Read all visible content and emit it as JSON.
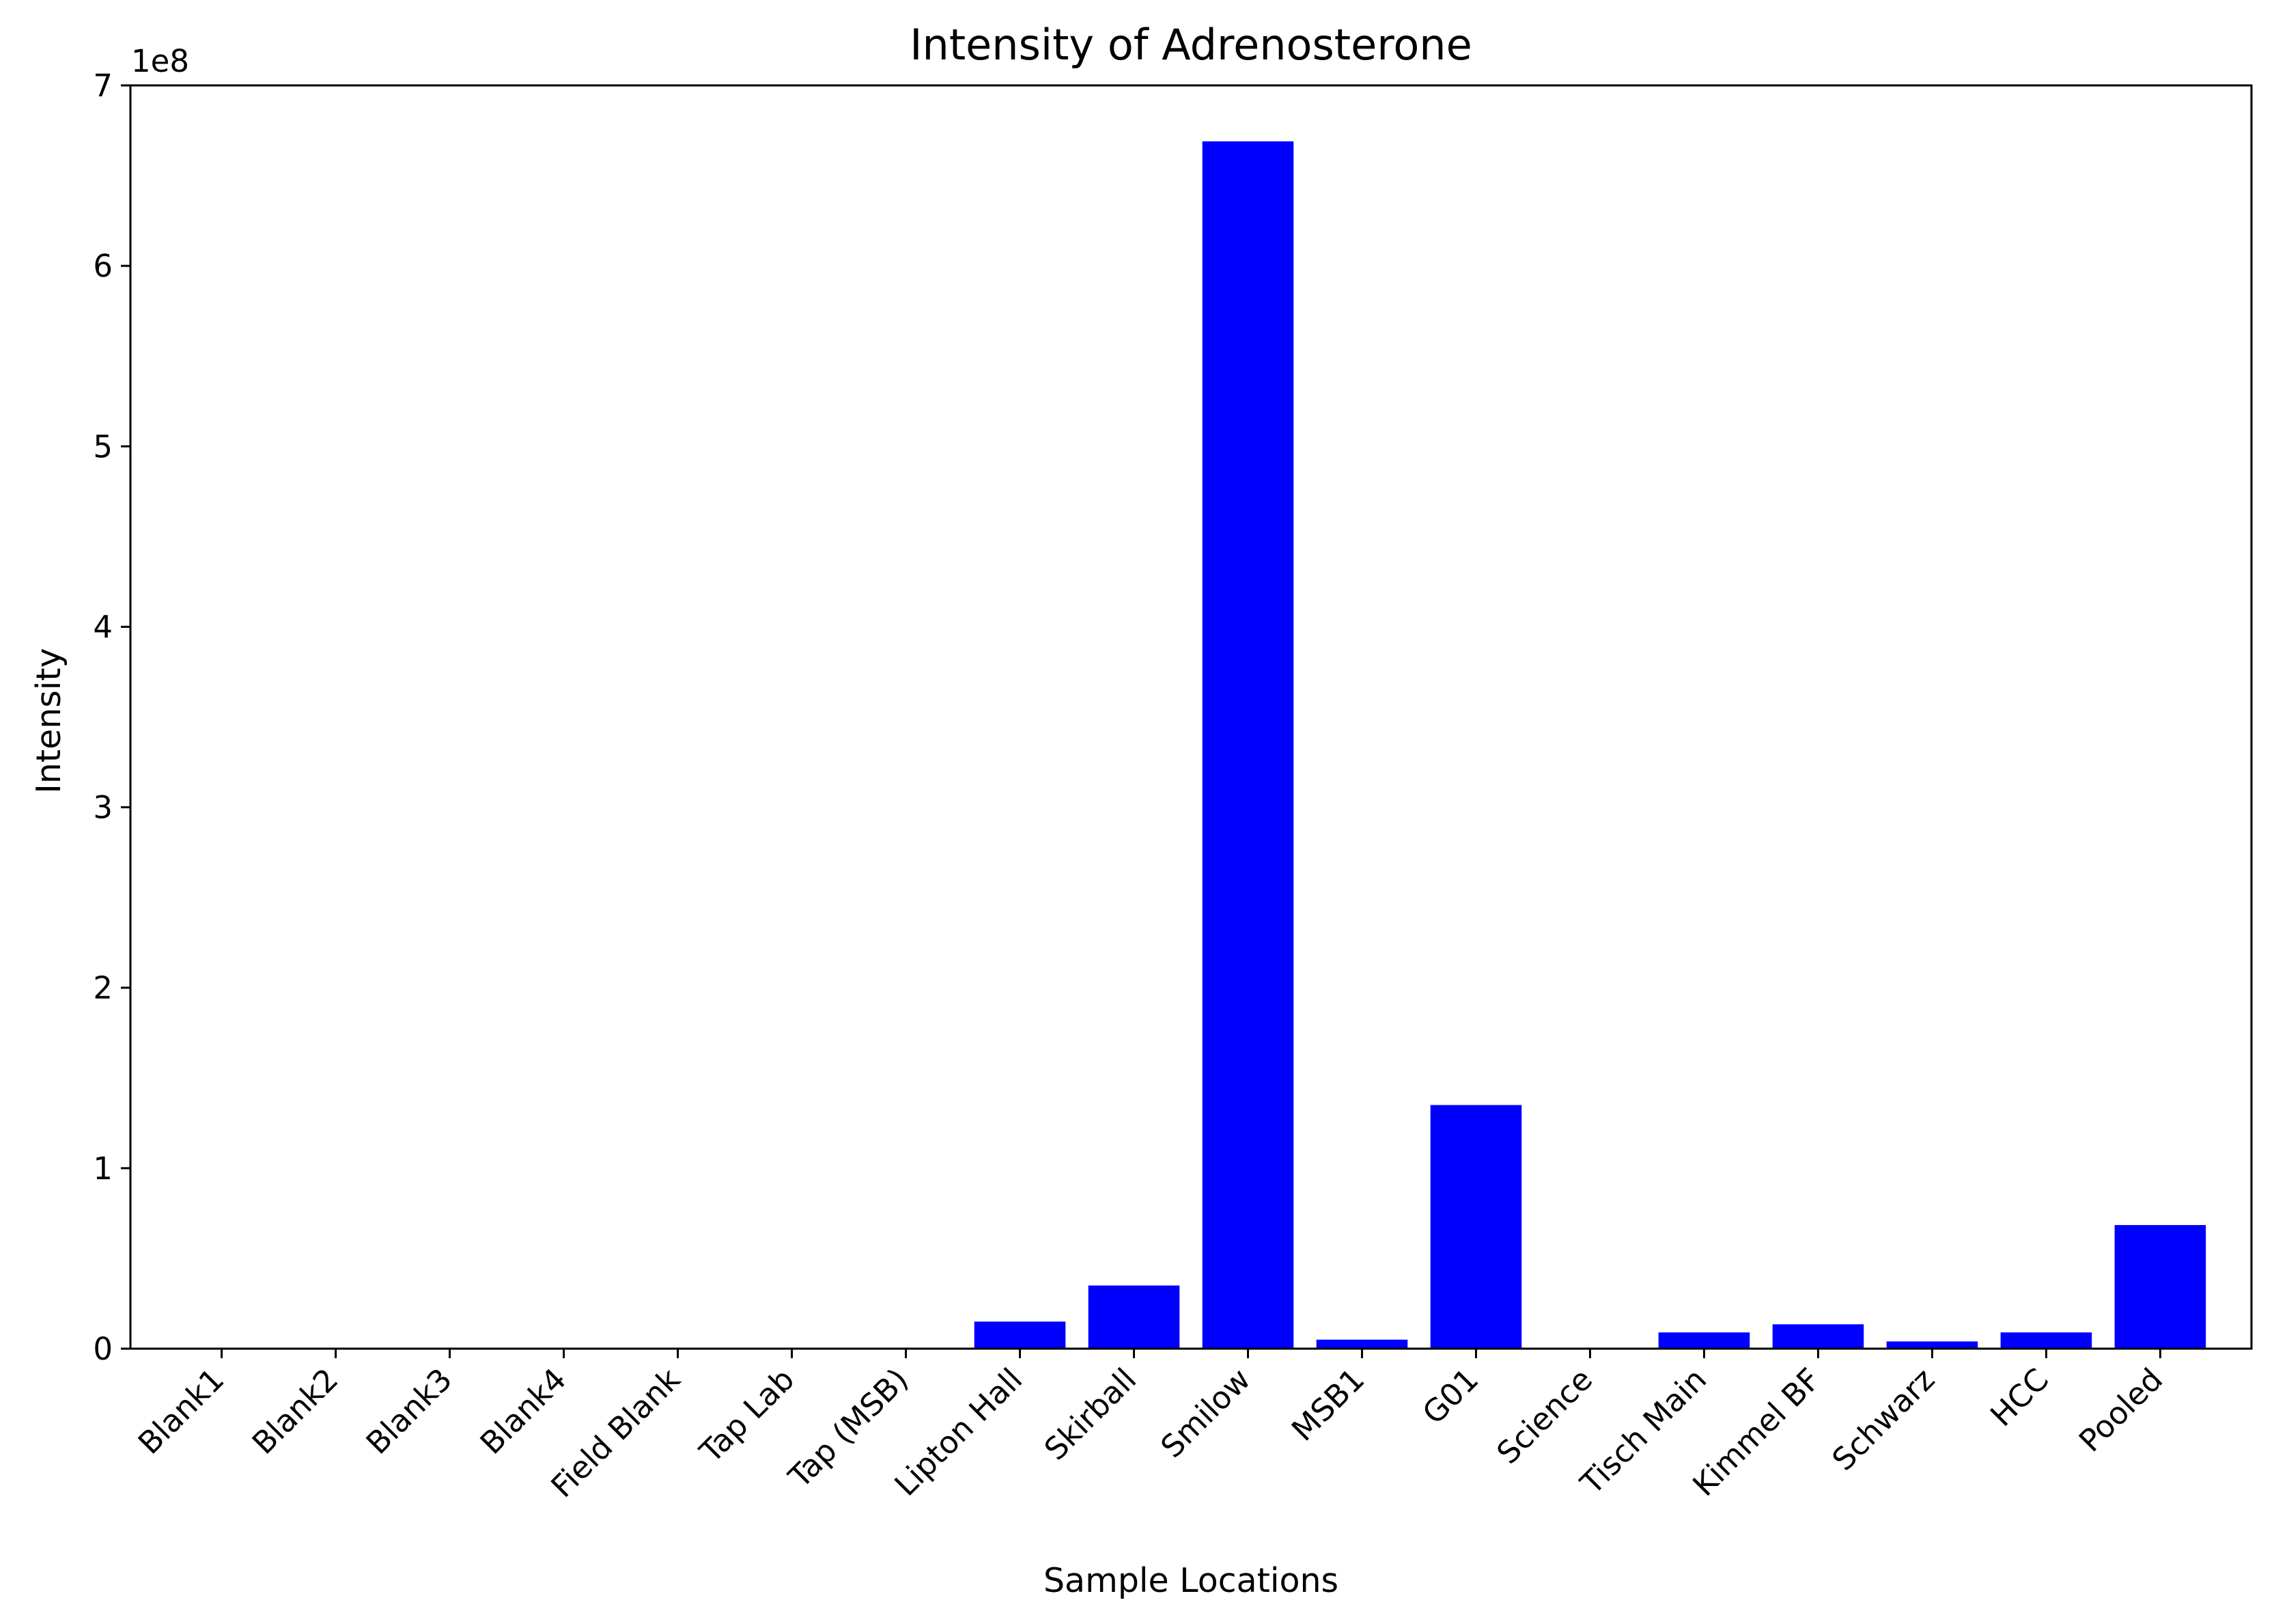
{
  "chart_data": {
    "type": "bar",
    "title": "Intensity of Adrenosterone",
    "xlabel": "Sample Locations",
    "ylabel": "Intensity",
    "y_offset_label": "1e8",
    "categories": [
      "Blank1",
      "Blank2",
      "Blank3",
      "Blank4",
      "Field Blank",
      "Tap Lab",
      "Tap (MSB)",
      "Lipton Hall",
      "Skirball",
      "Smilow",
      "MSB1",
      "G01",
      "Science",
      "Tisch Main",
      "Kimmel BF",
      "Schwarz",
      "HCC",
      "Pooled"
    ],
    "values": [
      0,
      0,
      0,
      0,
      0,
      0,
      0,
      15000000,
      35000000,
      669000000,
      5000000,
      135000000,
      0,
      9000000,
      13500000,
      4000000,
      9000000,
      68500000
    ],
    "ylim": [
      0,
      700000000
    ],
    "yticks": [
      0,
      100000000,
      200000000,
      300000000,
      400000000,
      500000000,
      600000000,
      700000000
    ],
    "ytick_labels": [
      "0",
      "1",
      "2",
      "3",
      "4",
      "5",
      "6",
      "7"
    ],
    "bar_color": "#0000ff",
    "grid": false,
    "legend": "none"
  }
}
